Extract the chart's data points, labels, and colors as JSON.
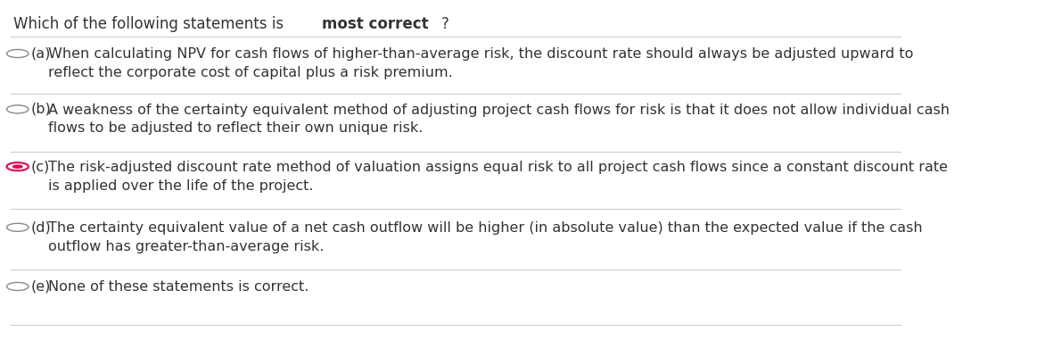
{
  "title_normal": "Which of the following statements is ",
  "title_bold": "most correct",
  "title_suffix": "?",
  "background_color": "#ffffff",
  "text_color": "#333333",
  "line_color": "#cccccc",
  "radio_empty_color": "#888888",
  "radio_selected_color": "#e8004d",
  "font_size": 11.5,
  "title_font_size": 12,
  "options": [
    {
      "label": "(a)",
      "selected": false,
      "lines": [
        "When calculating NPV for cash flows of higher-than-average risk, the discount rate should always be adjusted upward to",
        "reflect the corporate cost of capital plus a risk premium."
      ]
    },
    {
      "label": "(b)",
      "selected": false,
      "lines": [
        "A weakness of the certainty equivalent method of adjusting project cash flows for risk is that it does not allow individual cash",
        "flows to be adjusted to reflect their own unique risk."
      ]
    },
    {
      "label": "(c)",
      "selected": true,
      "lines": [
        "The risk-adjusted discount rate method of valuation assigns equal risk to all project cash flows since a constant discount rate",
        "is applied over the life of the project."
      ]
    },
    {
      "label": "(d)",
      "selected": false,
      "lines": [
        "The certainty equivalent value of a net cash outflow will be higher (in absolute value) than the expected value if the cash",
        "outflow has greater-than-average risk."
      ]
    },
    {
      "label": "(e)",
      "selected": false,
      "lines": [
        "None of these statements is correct."
      ]
    }
  ]
}
